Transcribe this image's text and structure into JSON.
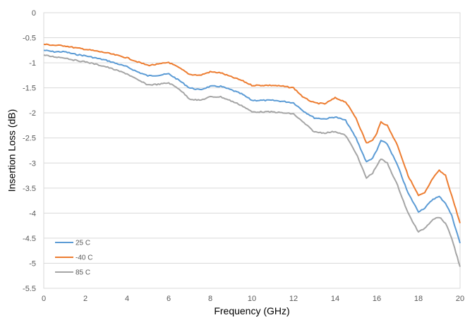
{
  "chart_data": {
    "type": "line",
    "title": "",
    "xlabel": "Frequency (GHz)",
    "ylabel": "Insertion Loss (dB)",
    "xlim": [
      0,
      20
    ],
    "ylim": [
      -5.5,
      0
    ],
    "xticks": [
      0,
      2,
      4,
      6,
      8,
      10,
      12,
      14,
      16,
      18,
      20
    ],
    "yticks": [
      0,
      -0.5,
      -1,
      -1.5,
      -2,
      -2.5,
      -3,
      -3.5,
      -4,
      -4.5,
      -5,
      -5.5
    ],
    "grid": "horizontal",
    "legend_position": "bottom-left",
    "series": [
      {
        "name": "25 C",
        "color": "#5B9BD5",
        "x": [
          0,
          0.5,
          1,
          1.5,
          2,
          3,
          4,
          4.5,
          5,
          5.5,
          6,
          6.5,
          7,
          7.5,
          8,
          8.5,
          9,
          9.5,
          10,
          10.5,
          11,
          11.5,
          12,
          12.5,
          13,
          13.5,
          14,
          14.5,
          15,
          15.5,
          15.8,
          16,
          16.2,
          16.5,
          17,
          17.5,
          18,
          18.3,
          18.7,
          19,
          19.3,
          19.6,
          20
        ],
        "y": [
          -0.75,
          -0.78,
          -0.78,
          -0.83,
          -0.86,
          -0.95,
          -1.08,
          -1.18,
          -1.26,
          -1.25,
          -1.22,
          -1.35,
          -1.5,
          -1.54,
          -1.47,
          -1.47,
          -1.54,
          -1.62,
          -1.75,
          -1.75,
          -1.75,
          -1.77,
          -1.8,
          -1.97,
          -2.1,
          -2.12,
          -2.08,
          -2.15,
          -2.5,
          -2.98,
          -2.9,
          -2.75,
          -2.55,
          -2.62,
          -3.05,
          -3.6,
          -3.97,
          -3.9,
          -3.72,
          -3.67,
          -3.8,
          -4.05,
          -4.6
        ]
      },
      {
        "name": "-40 C",
        "color": "#ED7D31",
        "x": [
          0,
          0.5,
          1,
          1.5,
          2,
          3,
          4,
          4.5,
          5,
          5.5,
          6,
          6.5,
          7,
          7.5,
          8,
          8.5,
          9,
          9.5,
          10,
          10.5,
          11,
          11.5,
          12,
          12.5,
          13,
          13.5,
          14,
          14.5,
          15,
          15.5,
          15.8,
          16,
          16.2,
          16.5,
          17,
          17.5,
          18,
          18.3,
          18.7,
          19,
          19.3,
          19.6,
          20
        ],
        "y": [
          -0.63,
          -0.65,
          -0.66,
          -0.7,
          -0.73,
          -0.8,
          -0.9,
          -0.98,
          -1.05,
          -1.03,
          -0.99,
          -1.1,
          -1.23,
          -1.25,
          -1.18,
          -1.2,
          -1.28,
          -1.35,
          -1.45,
          -1.45,
          -1.45,
          -1.47,
          -1.5,
          -1.7,
          -1.8,
          -1.82,
          -1.7,
          -1.78,
          -2.1,
          -2.6,
          -2.55,
          -2.4,
          -2.18,
          -2.25,
          -2.65,
          -3.25,
          -3.65,
          -3.6,
          -3.3,
          -3.15,
          -3.25,
          -3.65,
          -4.2
        ]
      },
      {
        "name": "85 C",
        "color": "#A5A5A5",
        "x": [
          0,
          0.5,
          1,
          1.5,
          2,
          3,
          4,
          4.5,
          5,
          5.5,
          6,
          6.5,
          7,
          7.5,
          8,
          8.5,
          9,
          9.5,
          10,
          10.5,
          11,
          11.5,
          12,
          12.5,
          13,
          13.5,
          14,
          14.5,
          15,
          15.5,
          15.8,
          16,
          16.2,
          16.5,
          17,
          17.5,
          18,
          18.3,
          18.7,
          19,
          19.3,
          19.6,
          20
        ],
        "y": [
          -0.85,
          -0.88,
          -0.9,
          -0.95,
          -0.98,
          -1.08,
          -1.22,
          -1.34,
          -1.44,
          -1.43,
          -1.4,
          -1.52,
          -1.72,
          -1.75,
          -1.68,
          -1.68,
          -1.76,
          -1.85,
          -1.98,
          -1.98,
          -1.98,
          -2.0,
          -2.02,
          -2.2,
          -2.38,
          -2.4,
          -2.37,
          -2.45,
          -2.8,
          -3.3,
          -3.2,
          -3.05,
          -2.92,
          -3.0,
          -3.45,
          -4.0,
          -4.38,
          -4.3,
          -4.12,
          -4.08,
          -4.2,
          -4.5,
          -5.07
        ]
      }
    ]
  }
}
